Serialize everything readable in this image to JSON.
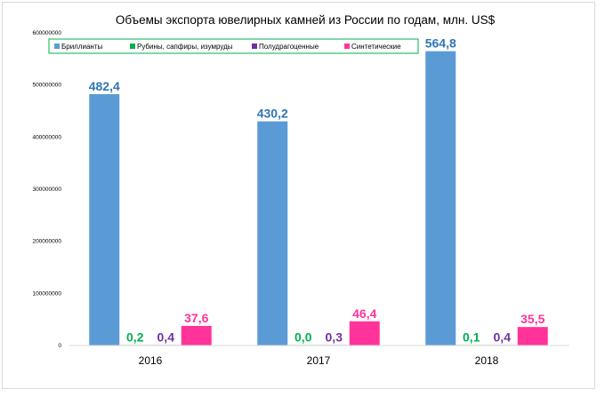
{
  "chart_data": {
    "type": "bar",
    "title": "Объемы экспорта ювелирных камней из России по годам, млн. US$",
    "categories": [
      "2016",
      "2017",
      "2018"
    ],
    "ylim": [
      0,
      600000000
    ],
    "yticks": [
      "0",
      "100000000",
      "200000000",
      "300000000",
      "400000000",
      "500000000",
      "600000000"
    ],
    "ytick_values": [
      0,
      100000000,
      200000000,
      300000000,
      400000000,
      500000000,
      600000000
    ],
    "grid": false,
    "legend_position": "top",
    "series": [
      {
        "name": "Бриллианты",
        "color": "#5b9bd5",
        "label_color": "#2e75b6",
        "values": [
          482400000,
          430200000,
          564800000
        ],
        "labels": [
          "482,4",
          "430,2",
          "564,8"
        ]
      },
      {
        "name": "Рубины, сапфиры, изумруды",
        "color": "#00b050",
        "label_color": "#00b050",
        "values": [
          200000,
          0,
          100000
        ],
        "labels": [
          "0,2",
          "0,0",
          "0,1"
        ]
      },
      {
        "name": "Полудрагоценные",
        "color": "#7030a0",
        "label_color": "#7030a0",
        "values": [
          400000,
          300000,
          400000
        ],
        "labels": [
          "0,4",
          "0,3",
          "0,4"
        ]
      },
      {
        "name": "Синтетические",
        "color": "#ff3399",
        "label_color": "#ff3399",
        "values": [
          37600000,
          46400000,
          35500000
        ],
        "labels": [
          "37,6",
          "46,4",
          "35,5"
        ]
      }
    ]
  }
}
